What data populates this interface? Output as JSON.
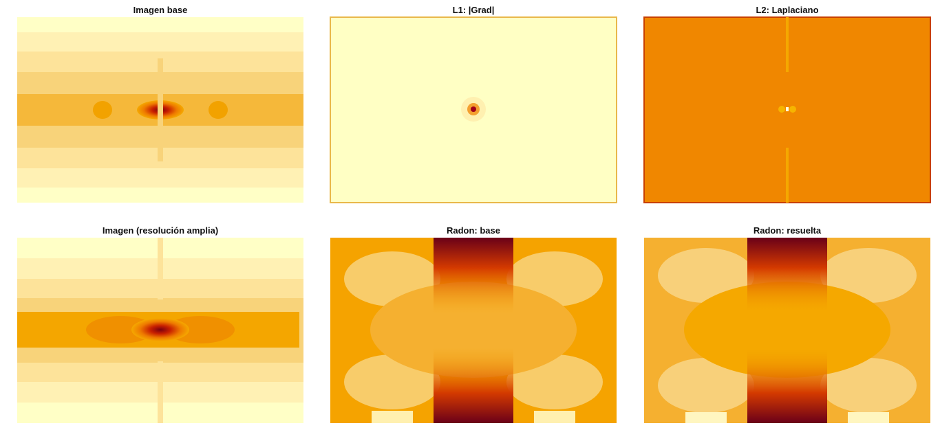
{
  "panels": [
    {
      "title": "Imagen base"
    },
    {
      "title": "L1: |Grad|"
    },
    {
      "title": "L2: Laplaciano"
    },
    {
      "title": "Imagen (resolución amplia)"
    },
    {
      "title": "Radon: base"
    },
    {
      "title": "Radon: resuelta"
    }
  ]
}
